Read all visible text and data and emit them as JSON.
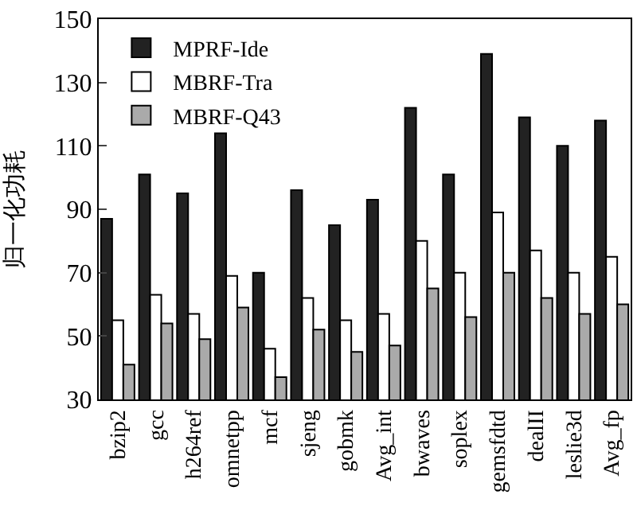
{
  "chart_data": {
    "type": "bar",
    "ylabel": "归一化功耗",
    "categories": [
      "bzip2",
      "gcc",
      "h264ref",
      "omnetpp",
      "mcf",
      "sjeng",
      "gobmk",
      "Avg_int",
      "bwaves",
      "soplex",
      "gemsfdtd",
      "dealII",
      "leslie3d",
      "Avg_fp"
    ],
    "series": [
      {
        "name": "MPRF-Ide",
        "color": "#222222",
        "values": [
          87,
          101,
          95,
          114,
          70,
          96,
          85,
          93,
          122,
          101,
          139,
          119,
          110,
          118
        ]
      },
      {
        "name": "MBRF-Tra",
        "color": "#ffffff",
        "values": [
          55,
          63,
          57,
          69,
          46,
          62,
          55,
          57,
          80,
          70,
          89,
          77,
          70,
          75
        ]
      },
      {
        "name": "MBRF-Q43",
        "color": "#aaaaaa",
        "values": [
          41,
          54,
          49,
          59,
          37,
          52,
          45,
          47,
          65,
          56,
          70,
          62,
          57,
          60
        ]
      }
    ],
    "ylim": [
      30,
      150
    ],
    "yticks": [
      30,
      50,
      70,
      90,
      110,
      130,
      150
    ],
    "legend": "top left"
  }
}
